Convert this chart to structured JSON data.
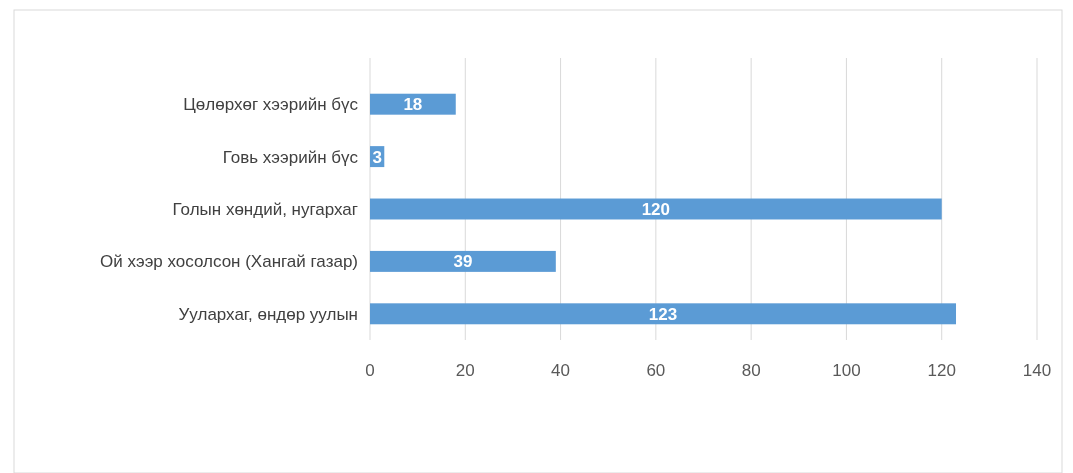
{
  "chart_data": {
    "type": "bar",
    "orientation": "horizontal",
    "categories": [
      "Цөлөрхөг хээрийн бүс",
      "Говь хээрийн бүс",
      "Голын хөндий, нугархаг",
      "Ой хээр хосолсон (Хангай газар)",
      "Уулархаг, өндөр уулын"
    ],
    "values": [
      18,
      3,
      120,
      39,
      123
    ],
    "color": "#5b9bd5",
    "xlim": [
      0,
      140
    ],
    "xticks": [
      0,
      20,
      40,
      60,
      80,
      100,
      120,
      140
    ],
    "grid": "x",
    "data_labels": true
  }
}
